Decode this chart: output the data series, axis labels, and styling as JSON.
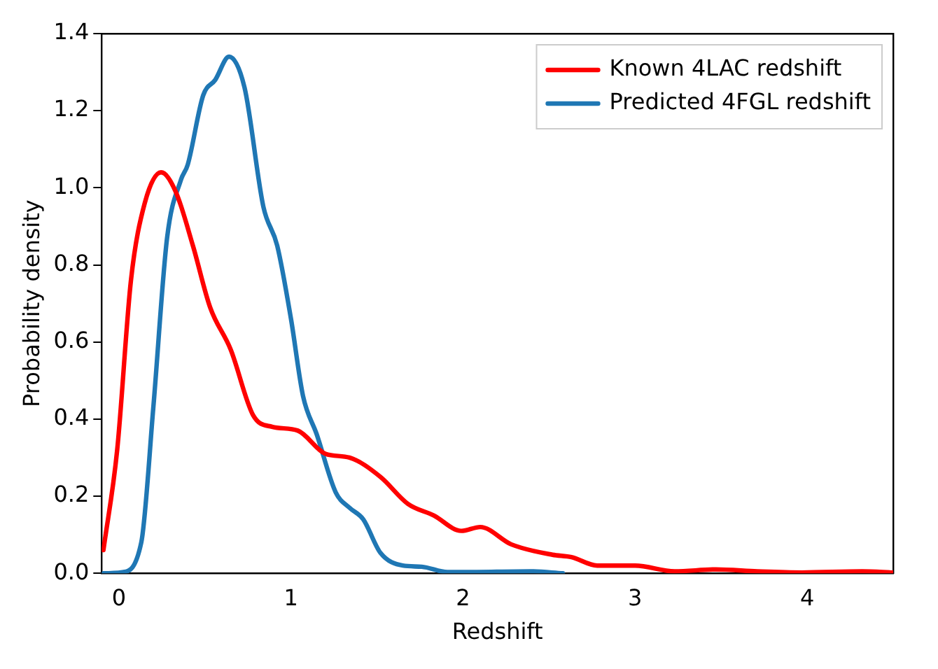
{
  "chart_data": {
    "type": "line",
    "xlabel": "Redshift",
    "ylabel": "Probability density",
    "xlim": [
      -0.1,
      4.5
    ],
    "ylim": [
      0,
      1.4
    ],
    "xticks": [
      0,
      1,
      2,
      3,
      4
    ],
    "yticks": [
      {
        "value": 0,
        "label": "0.0"
      },
      0.2,
      0.4,
      0.6,
      0.8,
      {
        "value": 1,
        "label": "1.0"
      },
      1.2,
      1.4
    ],
    "grid": false,
    "legend": "top right",
    "marker": "none",
    "line_style": "solid",
    "series": [
      {
        "name": "Known 4LAC redshift",
        "color": "#ff0000",
        "x": [
          -0.09,
          -0.01,
          0.07,
          0.15,
          0.245,
          0.33,
          0.43,
          0.53,
          0.65,
          0.78,
          0.89,
          1.04,
          1.2,
          1.34,
          1.52,
          1.68,
          1.83,
          1.99,
          2.1,
          2.28,
          2.52,
          2.63,
          2.78,
          3.0,
          3.23,
          3.47,
          3.71,
          3.97,
          4.32,
          4.5
        ],
        "values": [
          0.06,
          0.32,
          0.76,
          0.96,
          1.04,
          0.99,
          0.85,
          0.69,
          0.58,
          0.41,
          0.38,
          0.37,
          0.31,
          0.3,
          0.25,
          0.18,
          0.15,
          0.11,
          0.12,
          0.075,
          0.048,
          0.042,
          0.02,
          0.02,
          0.005,
          0.01,
          0.005,
          0.002,
          0.005,
          0.002
        ]
      },
      {
        "name": "Predicted 4FGL redshift",
        "color": "#1f77b4",
        "x": [
          -0.09,
          0.02,
          0.13,
          0.2,
          0.28,
          0.36,
          0.4,
          0.49,
          0.56,
          0.64,
          0.73,
          0.84,
          0.92,
          1.0,
          1.07,
          1.15,
          1.26,
          1.34,
          1.42,
          1.52,
          1.65,
          1.76,
          1.91,
          2.0,
          2.39,
          2.58
        ],
        "values": [
          0,
          0.003,
          0.08,
          0.43,
          0.87,
          1.02,
          1.06,
          1.24,
          1.28,
          1.34,
          1.26,
          0.95,
          0.85,
          0.66,
          0.46,
          0.36,
          0.21,
          0.17,
          0.14,
          0.053,
          0.02,
          0.017,
          0.003,
          0.003,
          0.005,
          0
        ]
      }
    ]
  }
}
